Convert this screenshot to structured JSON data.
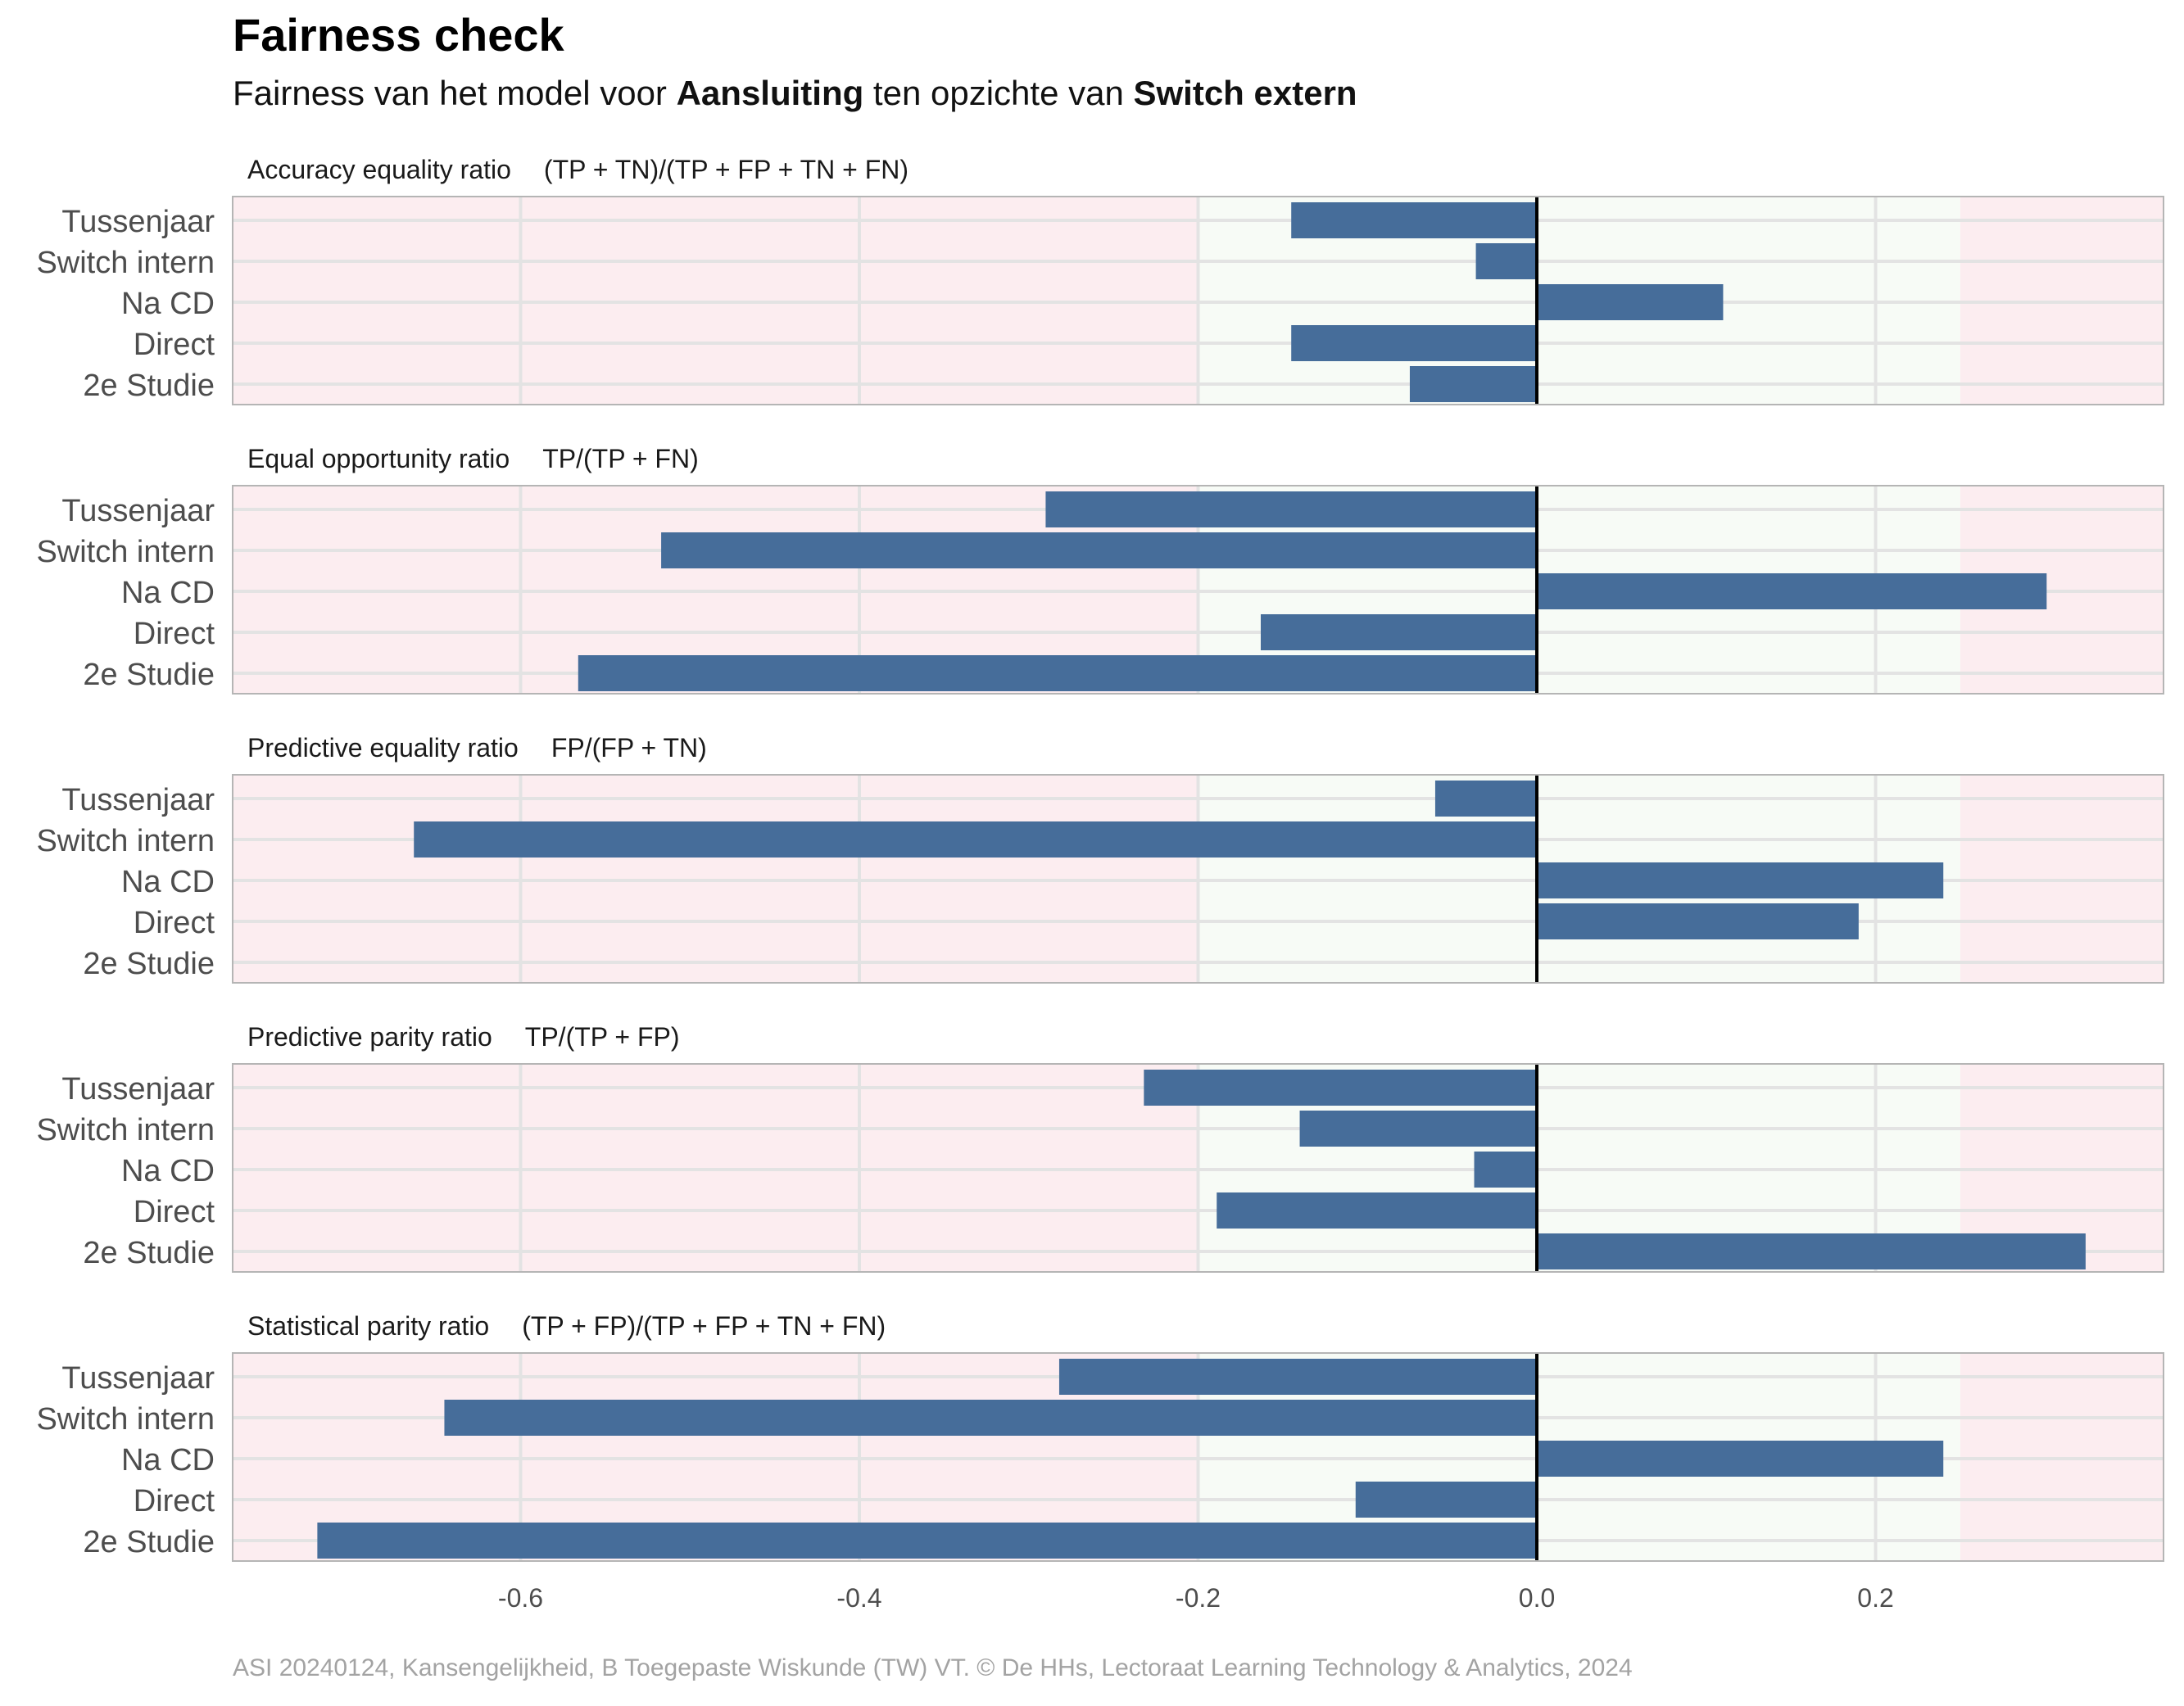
{
  "header": {
    "title": "Fairness check",
    "subtitle_prefix": "Fairness van het model voor ",
    "subtitle_model": "Aansluiting",
    "subtitle_middle": " ten opzichte van ",
    "subtitle_reference": "Switch extern"
  },
  "caption": "ASI 20240124, Kansengelijkheid, B Toegepaste Wiskunde (TW) VT. © De HHs, Lectoraat Learning Technology & Analytics, 2024",
  "colors": {
    "bar": "#466d9a",
    "unfair_zone": "#fcedf0",
    "fair_zone": "#f7fbf6",
    "zero_line": "#000000"
  },
  "chart_data": {
    "type": "bar",
    "orientation": "horizontal",
    "facets": "stacked",
    "categories": [
      "Tussenjaar",
      "Switch intern",
      "Na CD",
      "Direct",
      "2e Studie"
    ],
    "xlim": [
      -0.77,
      0.37
    ],
    "x_ticks": [
      -0.6,
      -0.4,
      -0.2,
      0.0,
      0.2
    ],
    "x_tick_labels": [
      "-0.6",
      "-0.4",
      "-0.2",
      "0.0",
      "0.2"
    ],
    "fair_range": [
      -0.2,
      0.25
    ],
    "grid": true,
    "panels": [
      {
        "name": "Accuracy equality ratio",
        "formula": "(TP + TN)/(TP + FP + TN + FN)",
        "values": [
          -0.145,
          -0.036,
          0.11,
          -0.145,
          -0.075
        ]
      },
      {
        "name": "Equal opportunity ratio",
        "formula": "TP/(TP + FN)",
        "values": [
          -0.29,
          -0.517,
          0.301,
          -0.163,
          -0.566
        ]
      },
      {
        "name": "Predictive equality ratio",
        "formula": "FP/(FP + TN)",
        "values": [
          -0.06,
          -0.663,
          0.24,
          0.19,
          null
        ]
      },
      {
        "name": "Predictive parity ratio",
        "formula": "TP/(TP + FP)",
        "values": [
          -0.232,
          -0.14,
          -0.037,
          -0.189,
          0.324
        ]
      },
      {
        "name": "Statistical parity ratio",
        "formula": "(TP + FP)/(TP + FP + TN + FN)",
        "values": [
          -0.282,
          -0.645,
          0.24,
          -0.107,
          -0.72
        ]
      }
    ]
  }
}
